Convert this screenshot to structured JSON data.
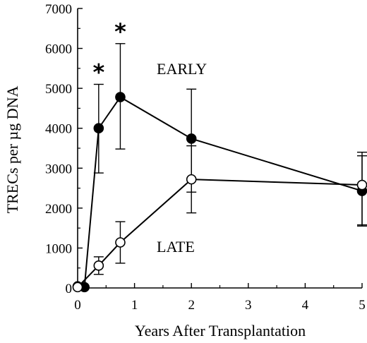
{
  "chart_data": {
    "type": "line",
    "xlabel": "Years After Transplantation",
    "ylabel": "TRECs per µg DNA",
    "xlim": [
      0,
      5
    ],
    "ylim": [
      0,
      7000
    ],
    "x_ticks": [
      0,
      1,
      2,
      3,
      4,
      5
    ],
    "y_ticks": [
      0,
      1000,
      2000,
      3000,
      4000,
      5000,
      6000,
      7000
    ],
    "x_tick_labels": [
      "0",
      "1",
      "2",
      "3",
      "4",
      "5"
    ],
    "y_tick_labels": [
      "0",
      "1000",
      "2000",
      "3000",
      "4000",
      "5000",
      "6000",
      "7000"
    ],
    "grid": false,
    "series": [
      {
        "name": "EARLY",
        "marker": "filled-circle",
        "color": "#000000",
        "x": [
          0.0,
          0.12,
          0.37,
          0.75,
          2.0,
          5.0
        ],
        "y": [
          40,
          20,
          4000,
          4780,
          3740,
          2430
        ],
        "err_low": [
          null,
          null,
          1120,
          1300,
          1340,
          880
        ],
        "err_high": [
          null,
          null,
          1100,
          1340,
          1240,
          880
        ]
      },
      {
        "name": "LATE",
        "marker": "open-circle",
        "color": "#000000",
        "x": [
          0.0,
          0.37,
          0.75,
          2.0,
          5.0
        ],
        "y": [
          20,
          560,
          1140,
          2720,
          2580
        ],
        "err_low": [
          null,
          220,
          520,
          840,
          1000
        ],
        "err_high": [
          null,
          220,
          520,
          840,
          820
        ]
      }
    ],
    "annotations": [
      {
        "text": "*",
        "x": 0.37
      },
      {
        "text": "*",
        "x": 0.75
      }
    ]
  }
}
